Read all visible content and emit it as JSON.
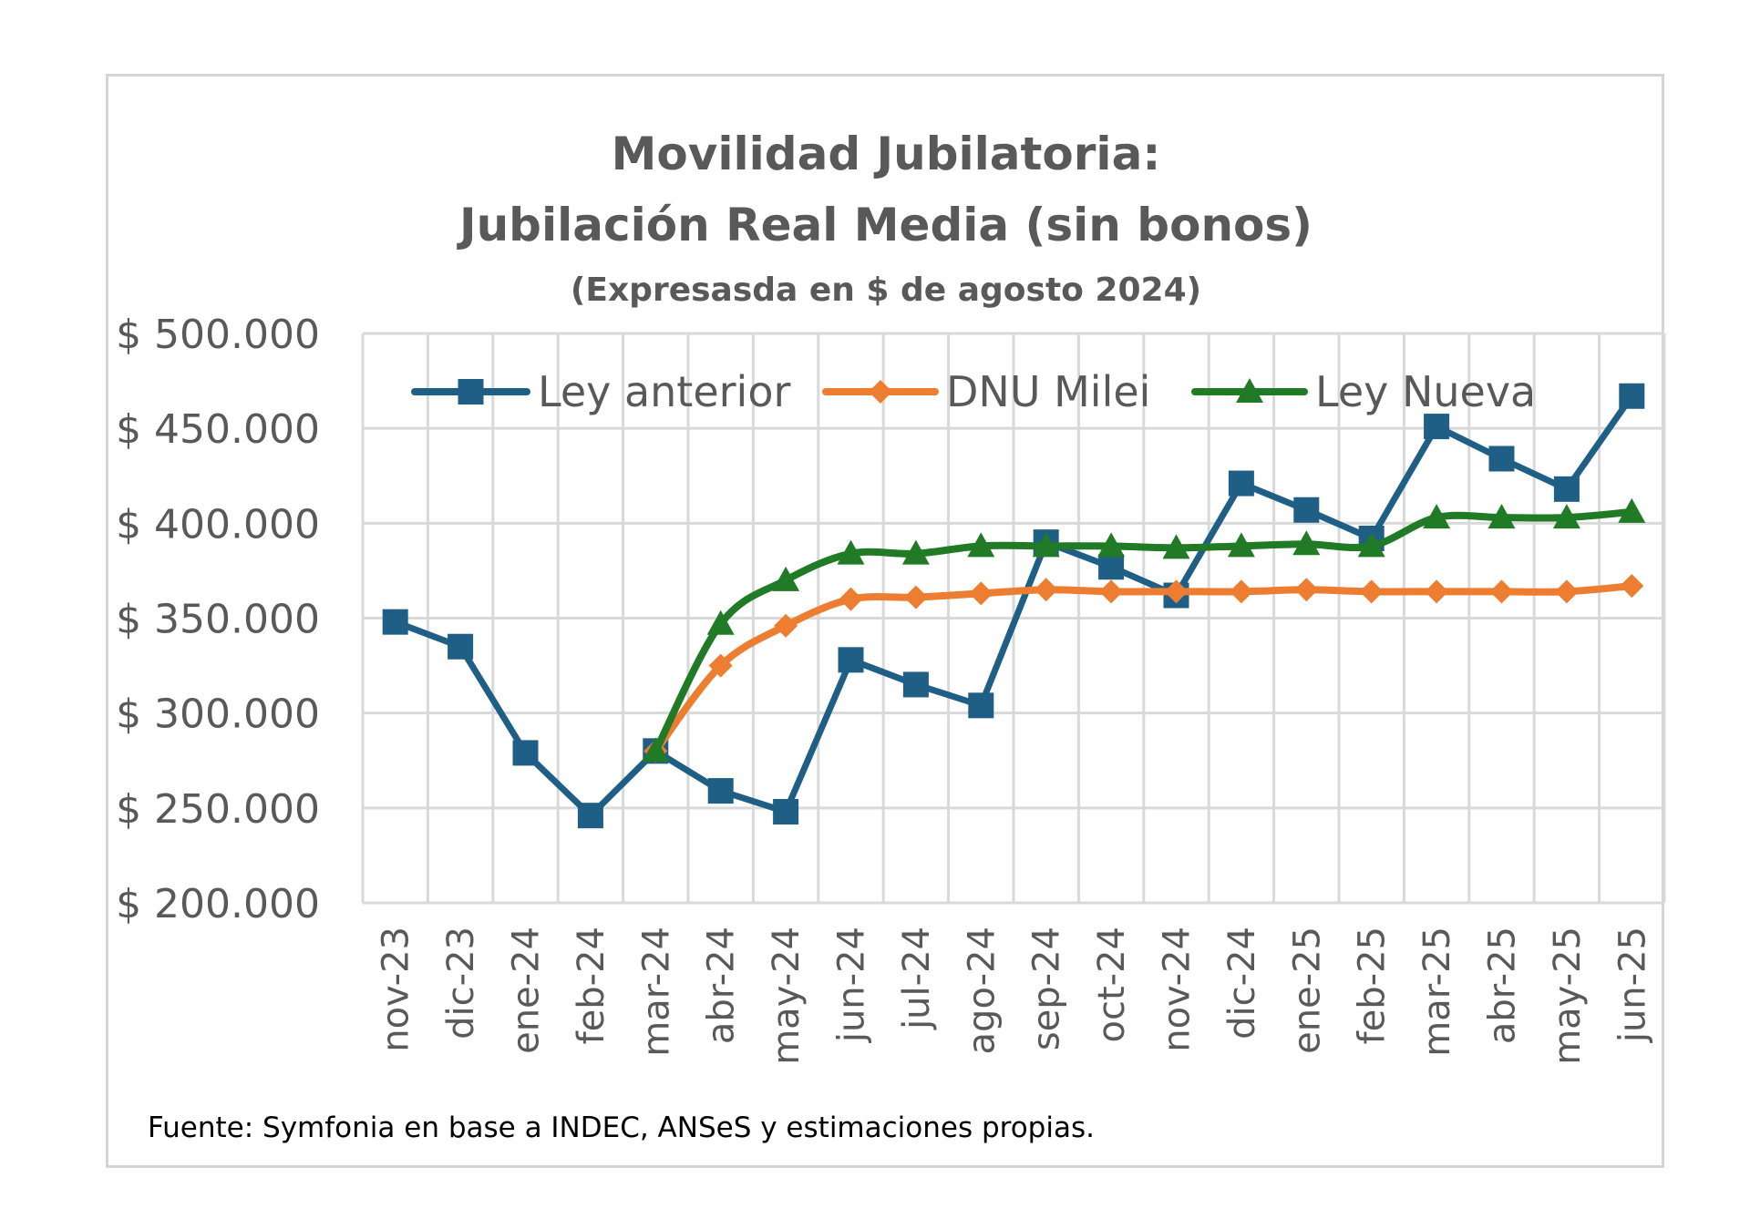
{
  "chart_data": {
    "type": "line",
    "title": "Movilidad Jubilatoria:",
    "subtitle": "Jubilación Real Media (sin bonos)",
    "subtitle2": "(Expresasda en $ de agosto 2024)",
    "xlabel": "",
    "ylabel": "",
    "ylim": [
      200000,
      500000
    ],
    "yticks": [
      200000,
      250000,
      300000,
      350000,
      400000,
      450000,
      500000
    ],
    "ytick_labels": [
      "$ 200.000",
      "$ 250.000",
      "$ 300.000",
      "$ 350.000",
      "$ 400.000",
      "$ 450.000",
      "$ 500.000"
    ],
    "grid": true,
    "legend_position": "top",
    "categories": [
      "nov-23",
      "dic-23",
      "ene-24",
      "feb-24",
      "mar-24",
      "abr-24",
      "may-24",
      "jun-24",
      "jul-24",
      "ago-24",
      "sep-24",
      "oct-24",
      "nov-24",
      "dic-24",
      "ene-25",
      "feb-25",
      "mar-25",
      "abr-25",
      "may-25",
      "jun-25"
    ],
    "series": [
      {
        "name": "Ley anterior",
        "color": "#1f5f85",
        "marker": "square",
        "values": [
          348000,
          335000,
          279000,
          246000,
          280000,
          259000,
          248000,
          328000,
          315000,
          304000,
          390000,
          377000,
          362000,
          421000,
          407000,
          392000,
          451000,
          434000,
          418000,
          467000
        ]
      },
      {
        "name": "DNU Milei",
        "color": "#ed7d31",
        "marker": "diamond",
        "values": [
          null,
          null,
          null,
          null,
          280000,
          325000,
          346000,
          360000,
          361000,
          363000,
          365000,
          364000,
          364000,
          364000,
          365000,
          364000,
          364000,
          364000,
          364000,
          367000
        ]
      },
      {
        "name": "Ley Nueva",
        "color": "#217a26",
        "marker": "triangle",
        "values": [
          null,
          null,
          null,
          null,
          280000,
          347000,
          370000,
          384000,
          384000,
          388000,
          388000,
          388000,
          387000,
          388000,
          389000,
          388000,
          403000,
          403000,
          403000,
          406000
        ]
      }
    ]
  },
  "source_note": "Fuente: Symfonia en base a INDEC, ANSeS  y estimaciones propias."
}
